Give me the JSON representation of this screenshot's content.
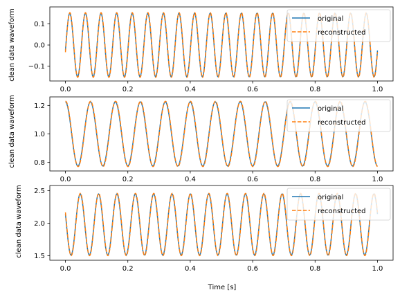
{
  "colors": {
    "original": "#1f77b4",
    "reconstructed": "#ff7f0e"
  },
  "legend_placement": "upper right",
  "xlabel_bottom": "Time [s]",
  "chart_data": [
    {
      "type": "line",
      "title": "",
      "xlabel": "",
      "ylabel": "clean data waveform",
      "xlim": [
        -0.05,
        1.05
      ],
      "ylim": [
        -0.17,
        0.18
      ],
      "xticks": [
        "0.0",
        "0.2",
        "0.4",
        "0.6",
        "0.8",
        "1.0"
      ],
      "yticks": [
        -0.1,
        0.0,
        0.1
      ],
      "ytick_labels": [
        "−0.1",
        "0.0",
        "0.1"
      ],
      "grid": false,
      "legend": [
        "original",
        "reconstructed"
      ],
      "signal": {
        "offset": 0.0,
        "amplitude": 0.15,
        "cycles": 20,
        "phase_deg": 260
      },
      "series": [
        {
          "name": "original",
          "style": "solid"
        },
        {
          "name": "reconstructed",
          "style": "dashed"
        }
      ]
    },
    {
      "type": "line",
      "title": "",
      "xlabel": "",
      "ylabel": "clean data waveform",
      "xlim": [
        -0.05,
        1.05
      ],
      "ylim": [
        0.74,
        1.26
      ],
      "xticks": [
        "0.0",
        "0.2",
        "0.4",
        "0.6",
        "0.8",
        "1.0"
      ],
      "yticks": [
        0.8,
        1.0,
        1.2
      ],
      "ytick_labels": [
        "0.8",
        "1.0",
        "1.2"
      ],
      "grid": false,
      "legend": [
        "original",
        "reconstructed"
      ],
      "signal": {
        "offset": 1.0,
        "amplitude": 0.225,
        "cycles": 12.5,
        "phase_deg": 0
      },
      "series": [
        {
          "name": "original",
          "style": "solid"
        },
        {
          "name": "reconstructed",
          "style": "dashed"
        }
      ]
    },
    {
      "type": "line",
      "title": "",
      "xlabel": "Time [s]",
      "ylabel": "clean data waveform",
      "xlim": [
        -0.05,
        1.05
      ],
      "ylim": [
        1.43,
        2.58
      ],
      "xticks": [
        "0.0",
        "0.2",
        "0.4",
        "0.6",
        "0.8",
        "1.0"
      ],
      "yticks": [
        1.5,
        2.0,
        2.5
      ],
      "ytick_labels": [
        "1.5",
        "2.0",
        "2.5"
      ],
      "grid": false,
      "legend": [
        "original",
        "reconstructed"
      ],
      "signal": {
        "offset": 1.98,
        "amplitude": 0.47,
        "cycles": 17,
        "phase_deg": 70
      },
      "series": [
        {
          "name": "original",
          "style": "solid"
        },
        {
          "name": "reconstructed",
          "style": "dashed"
        }
      ]
    }
  ]
}
